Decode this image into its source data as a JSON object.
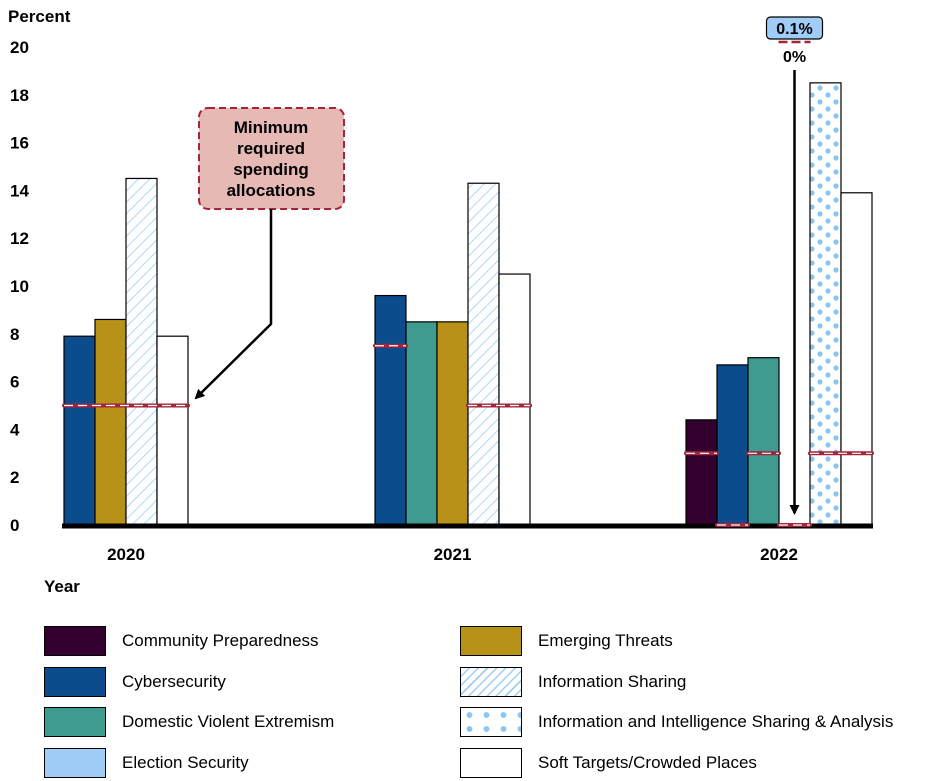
{
  "chart_data": {
    "type": "bar",
    "ylabel": "Percent",
    "xlabel": "Year",
    "ylim": [
      0,
      20
    ],
    "yticks": [
      0,
      2,
      4,
      6,
      8,
      10,
      12,
      14,
      16,
      18,
      20
    ],
    "categories": [
      "2020",
      "2021",
      "2022"
    ],
    "series": [
      {
        "name": "Community Preparedness",
        "color": "#33002f",
        "values": [
          null,
          null,
          4.4
        ]
      },
      {
        "name": "Cybersecurity",
        "color": "#0b4d8c",
        "values": [
          7.9,
          9.6,
          6.7
        ]
      },
      {
        "name": "Domestic Violent Extremism",
        "color": "#3f9a90",
        "values": [
          null,
          8.5,
          7.0
        ]
      },
      {
        "name": "Election Security",
        "color": "#9fcdf7",
        "values": [
          null,
          null,
          0.1
        ]
      },
      {
        "name": "Emerging Threats",
        "color": "#b89218",
        "values": [
          8.6,
          8.5,
          null
        ]
      },
      {
        "name": "Information Sharing",
        "color": "#9fcdf7",
        "pattern": "diagonal-hatch",
        "values": [
          14.5,
          14.3,
          null
        ]
      },
      {
        "name": "Information and Intelligence Sharing & Analysis",
        "color": "#8cc4f2",
        "pattern": "dots",
        "values": [
          null,
          null,
          18.5
        ]
      },
      {
        "name": "Soft Targets/Crowded Places",
        "color": "#ffffff",
        "values": [
          7.9,
          10.5,
          13.9
        ]
      }
    ],
    "minimum_required": [
      {
        "year": "2020",
        "value": 5,
        "series": [
          "Cybersecurity",
          "Emerging Threats",
          "Information Sharing",
          "Soft Targets/Crowded Places"
        ]
      },
      {
        "year": "2021",
        "value": 7.5,
        "series": [
          "Cybersecurity"
        ]
      },
      {
        "year": "2021",
        "value": 5,
        "series": [
          "Information Sharing",
          "Soft Targets/Crowded Places"
        ]
      },
      {
        "year": "2022",
        "value": 3,
        "series": [
          "Community Preparedness"
        ]
      },
      {
        "year": "2022",
        "value": 0,
        "series": [
          "Cybersecurity"
        ]
      },
      {
        "year": "2022",
        "value": 3,
        "series": [
          "Domestic Violent Extremism"
        ]
      },
      {
        "year": "2022",
        "value": 0,
        "series": [
          "Election Security"
        ]
      },
      {
        "year": "2022",
        "value": 3,
        "series": [
          "Information and Intelligence Sharing & Analysis",
          "Soft Targets/Crowded Places"
        ]
      }
    ],
    "annotations": {
      "callout": "Minimum required spending allocations",
      "election_value_label": "0.1%",
      "election_min_label": "0%"
    },
    "legend_placement": "bottom",
    "grid": false
  }
}
